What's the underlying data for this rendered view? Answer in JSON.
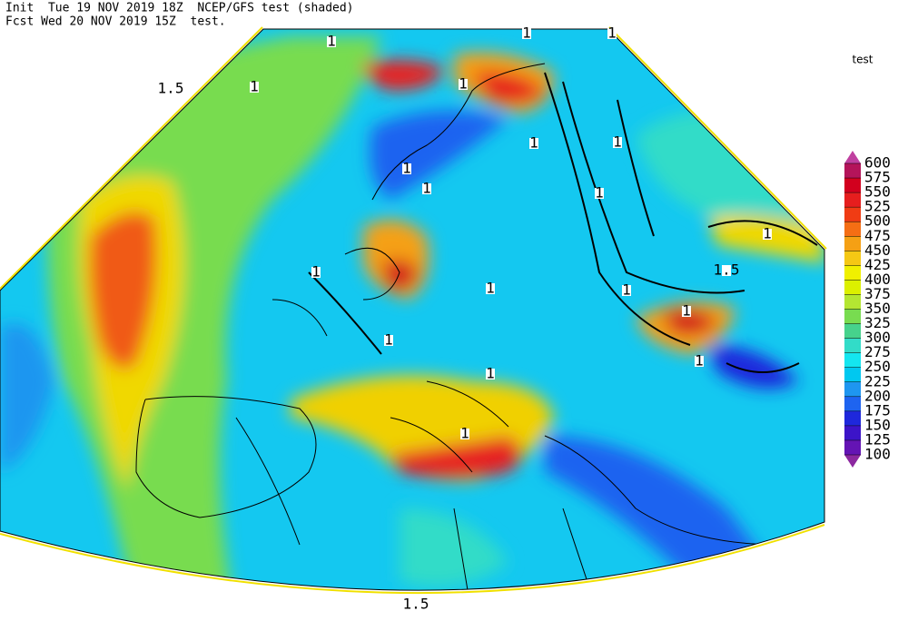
{
  "header": {
    "line1": "Init  Tue 19 NOV 2019 18Z  NCEP/GFS test (shaded)",
    "line2": "Fcst Wed 20 NOV 2019 15Z  test."
  },
  "colorbar": {
    "title": "test",
    "levels": [
      100,
      125,
      150,
      175,
      200,
      225,
      250,
      275,
      300,
      325,
      350,
      375,
      400,
      425,
      450,
      475,
      500,
      525,
      550,
      575,
      600
    ],
    "colors": [
      "#6414b4",
      "#3c14c8",
      "#1e28dc",
      "#1e64f0",
      "#1e96f0",
      "#00c8f0",
      "#14e6f0",
      "#32dcc8",
      "#46d28c",
      "#78dc50",
      "#b4e632",
      "#dcf000",
      "#f0f000",
      "#f5c814",
      "#f5a014",
      "#f56e14",
      "#f03c14",
      "#e61e1e",
      "#d2001e",
      "#b4145a"
    ],
    "under_color": "#8c28a0",
    "over_color": "#c040a0"
  },
  "contour_labels": [
    "1",
    "1",
    "1",
    "1.5",
    "1",
    "1",
    "1",
    "1",
    "1",
    "1",
    "1",
    "1",
    "1",
    "1",
    "1.5",
    "1",
    "1",
    "1",
    "1",
    "1",
    "1",
    "1.5"
  ]
}
